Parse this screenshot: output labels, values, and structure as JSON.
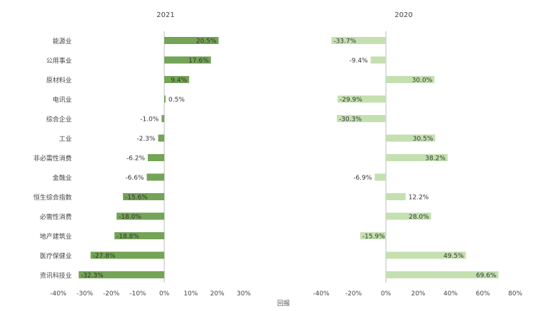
{
  "chart_data": {
    "type": "bar",
    "orientation": "horizontal",
    "categories": [
      "能源业",
      "公用事业",
      "原材料业",
      "电讯业",
      "综合企业",
      "工业",
      "非必需性消费",
      "金融业",
      "恒生综合指数",
      "必需性消费",
      "地产建筑业",
      "医疗保健业",
      "资讯科技业"
    ],
    "xlabel": "回报",
    "panels": [
      {
        "title": "2021",
        "values": [
          20.5,
          17.6,
          9.4,
          0.5,
          -1.0,
          -2.3,
          -6.2,
          -6.6,
          -15.6,
          -18.0,
          -18.8,
          -27.8,
          -32.3
        ],
        "labels": [
          "20.5%",
          "17.6%",
          "9.4%",
          "0.5%",
          "-1.0%",
          "-2.3%",
          "-6.2%",
          "-6.6%",
          "-15.6%",
          "-18.0%",
          "-18.8%",
          "-27.8%",
          "-32.3%"
        ],
        "xlim": [
          -40,
          30
        ],
        "ticks": [
          -40,
          -30,
          -20,
          -10,
          0,
          10,
          20,
          30
        ],
        "tick_labels": [
          "-40%",
          "-30%",
          "-20%",
          "-10%",
          "0%",
          "10%",
          "20%",
          "30%"
        ],
        "color": "#74a456"
      },
      {
        "title": "2020",
        "values": [
          -33.7,
          -9.4,
          30.0,
          -29.9,
          -30.3,
          30.5,
          38.2,
          -6.9,
          12.2,
          28.0,
          -15.9,
          49.5,
          69.6
        ],
        "labels": [
          "-33.7%",
          "-9.4%",
          "30.0%",
          "-29.9%",
          "-30.3%",
          "30.5%",
          "38.2%",
          "-6.9%",
          "12.2%",
          "28.0%",
          "-15.9%",
          "49.5%",
          "69.6%"
        ],
        "xlim": [
          -40,
          80
        ],
        "ticks": [
          -40,
          -20,
          0,
          20,
          40,
          60,
          80
        ],
        "tick_labels": [
          "-40%",
          "-20%",
          "0%",
          "20%",
          "40%",
          "60%",
          "80%"
        ],
        "color": "#c4e0b0"
      }
    ]
  }
}
